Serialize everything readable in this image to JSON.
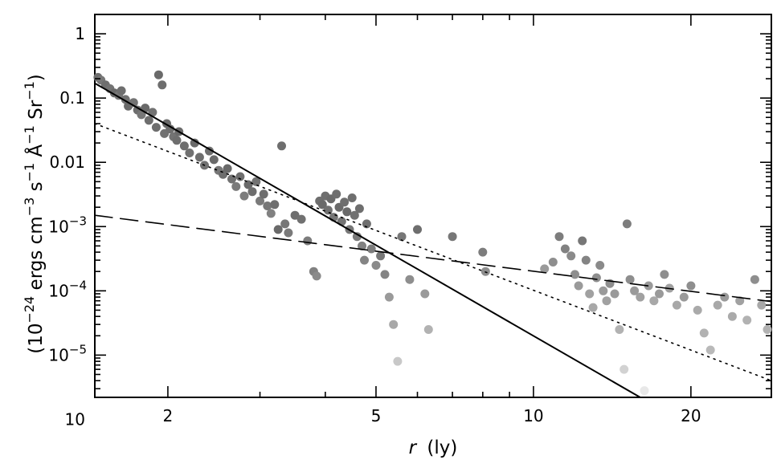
{
  "chart_data": {
    "type": "scatter",
    "title": "",
    "xlabel_var": "r",
    "xlabel_unit": "(ly)",
    "ylabel_parts": [
      "(10",
      "−24",
      " ergs cm",
      "−3",
      " s",
      "−1",
      " Å",
      "−1",
      " Sr",
      "−1",
      ")"
    ],
    "xscale": "log",
    "yscale": "log",
    "xlim": [
      1.45,
      28.5
    ],
    "ylim": [
      2.2e-06,
      2.0
    ],
    "xticks": [
      2,
      5,
      10,
      20
    ],
    "xtick_labels": [
      "2",
      "5",
      "10",
      "20"
    ],
    "yticks": [
      1,
      0.1,
      0.01,
      0.001,
      0.0001,
      1e-05,
      1e-06
    ],
    "ytick_labels": [
      {
        "base": "1",
        "exp": ""
      },
      {
        "base": "0.1",
        "exp": ""
      },
      {
        "base": "0.01",
        "exp": ""
      },
      {
        "base": "10",
        "exp": "−3"
      },
      {
        "base": "10",
        "exp": "−4"
      },
      {
        "base": "10",
        "exp": "−5"
      },
      {
        "base": "10",
        "exp": ""
      }
    ],
    "grid": false,
    "lines": [
      {
        "style": "solid",
        "x": [
          1.45,
          16.0
        ],
        "y": [
          0.17,
          2.2e-06
        ]
      },
      {
        "style": "dotted",
        "x": [
          1.45,
          28.5
        ],
        "y": [
          0.04,
          4e-06
        ]
      },
      {
        "style": "dashed",
        "x": [
          1.45,
          28.5
        ],
        "y": [
          0.0015,
          6.8e-05
        ]
      }
    ],
    "points": [
      {
        "x": 1.47,
        "y": 0.21,
        "c": "#6e6e6e"
      },
      {
        "x": 1.49,
        "y": 0.19,
        "c": "#777777"
      },
      {
        "x": 1.52,
        "y": 0.16,
        "c": "#6e6e6e"
      },
      {
        "x": 1.55,
        "y": 0.14,
        "c": "#737373"
      },
      {
        "x": 1.58,
        "y": 0.12,
        "c": "#6a6a6a"
      },
      {
        "x": 1.61,
        "y": 0.11,
        "c": "#777777"
      },
      {
        "x": 1.63,
        "y": 0.13,
        "c": "#6e6e6e"
      },
      {
        "x": 1.66,
        "y": 0.095,
        "c": "#717171"
      },
      {
        "x": 1.68,
        "y": 0.075,
        "c": "#6a6a6a"
      },
      {
        "x": 1.72,
        "y": 0.085,
        "c": "#737373"
      },
      {
        "x": 1.75,
        "y": 0.065,
        "c": "#6e6e6e"
      },
      {
        "x": 1.78,
        "y": 0.055,
        "c": "#777777"
      },
      {
        "x": 1.81,
        "y": 0.07,
        "c": "#6a6a6a"
      },
      {
        "x": 1.84,
        "y": 0.045,
        "c": "#6e6e6e"
      },
      {
        "x": 1.87,
        "y": 0.06,
        "c": "#727272"
      },
      {
        "x": 1.9,
        "y": 0.035,
        "c": "#6e6e6e"
      },
      {
        "x": 1.92,
        "y": 0.23,
        "c": "#6a6a6a"
      },
      {
        "x": 1.95,
        "y": 0.16,
        "c": "#6e6e6e"
      },
      {
        "x": 1.97,
        "y": 0.028,
        "c": "#717171"
      },
      {
        "x": 1.99,
        "y": 0.04,
        "c": "#6a6a6a"
      },
      {
        "x": 2.02,
        "y": 0.033,
        "c": "#6e6e6e"
      },
      {
        "x": 2.05,
        "y": 0.025,
        "c": "#737373"
      },
      {
        "x": 2.08,
        "y": 0.022,
        "c": "#6e6e6e"
      },
      {
        "x": 2.1,
        "y": 0.03,
        "c": "#6a6a6a"
      },
      {
        "x": 2.15,
        "y": 0.018,
        "c": "#6e6e6e"
      },
      {
        "x": 2.2,
        "y": 0.014,
        "c": "#717171"
      },
      {
        "x": 2.25,
        "y": 0.02,
        "c": "#6a6a6a"
      },
      {
        "x": 2.3,
        "y": 0.012,
        "c": "#6e6e6e"
      },
      {
        "x": 2.35,
        "y": 0.009,
        "c": "#727272"
      },
      {
        "x": 2.4,
        "y": 0.015,
        "c": "#6e6e6e"
      },
      {
        "x": 2.45,
        "y": 0.011,
        "c": "#6a6a6a"
      },
      {
        "x": 2.5,
        "y": 0.0075,
        "c": "#777777"
      },
      {
        "x": 2.55,
        "y": 0.0065,
        "c": "#6e6e6e"
      },
      {
        "x": 2.6,
        "y": 0.008,
        "c": "#6a6a6a"
      },
      {
        "x": 2.65,
        "y": 0.0055,
        "c": "#717171"
      },
      {
        "x": 2.7,
        "y": 0.0042,
        "c": "#7a7a7a"
      },
      {
        "x": 2.75,
        "y": 0.006,
        "c": "#6e6e6e"
      },
      {
        "x": 2.8,
        "y": 0.003,
        "c": "#7d7d7d"
      },
      {
        "x": 2.85,
        "y": 0.0045,
        "c": "#6a6a6a"
      },
      {
        "x": 2.9,
        "y": 0.0035,
        "c": "#6e6e6e"
      },
      {
        "x": 2.95,
        "y": 0.005,
        "c": "#737373"
      },
      {
        "x": 3.0,
        "y": 0.0025,
        "c": "#7a7a7a"
      },
      {
        "x": 3.05,
        "y": 0.0032,
        "c": "#6e6e6e"
      },
      {
        "x": 3.1,
        "y": 0.0021,
        "c": "#777777"
      },
      {
        "x": 3.15,
        "y": 0.0016,
        "c": "#818181"
      },
      {
        "x": 3.2,
        "y": 0.0022,
        "c": "#6e6e6e"
      },
      {
        "x": 3.25,
        "y": 0.0009,
        "c": "#6a6a6a"
      },
      {
        "x": 3.3,
        "y": 0.018,
        "c": "#6e6e6e"
      },
      {
        "x": 3.35,
        "y": 0.0011,
        "c": "#777777"
      },
      {
        "x": 3.4,
        "y": 0.0008,
        "c": "#7a7a7a"
      },
      {
        "x": 3.5,
        "y": 0.0015,
        "c": "#6e6e6e"
      },
      {
        "x": 3.6,
        "y": 0.0013,
        "c": "#717171"
      },
      {
        "x": 3.7,
        "y": 0.0006,
        "c": "#7d7d7d"
      },
      {
        "x": 3.8,
        "y": 0.0002,
        "c": "#818181"
      },
      {
        "x": 3.85,
        "y": 0.00017,
        "c": "#8a8a8a"
      },
      {
        "x": 3.9,
        "y": 0.0025,
        "c": "#6e6e6e"
      },
      {
        "x": 3.95,
        "y": 0.0022,
        "c": "#6a6a6a"
      },
      {
        "x": 4.0,
        "y": 0.003,
        "c": "#6e6e6e"
      },
      {
        "x": 4.05,
        "y": 0.0018,
        "c": "#717171"
      },
      {
        "x": 4.1,
        "y": 0.0027,
        "c": "#6a6a6a"
      },
      {
        "x": 4.15,
        "y": 0.0014,
        "c": "#777777"
      },
      {
        "x": 4.2,
        "y": 0.0032,
        "c": "#6e6e6e"
      },
      {
        "x": 4.25,
        "y": 0.002,
        "c": "#6a6a6a"
      },
      {
        "x": 4.3,
        "y": 0.0012,
        "c": "#737373"
      },
      {
        "x": 4.35,
        "y": 0.0024,
        "c": "#6e6e6e"
      },
      {
        "x": 4.4,
        "y": 0.0017,
        "c": "#6a6a6a"
      },
      {
        "x": 4.45,
        "y": 0.0009,
        "c": "#777777"
      },
      {
        "x": 4.5,
        "y": 0.0028,
        "c": "#6e6e6e"
      },
      {
        "x": 4.55,
        "y": 0.0015,
        "c": "#717171"
      },
      {
        "x": 4.6,
        "y": 0.0007,
        "c": "#7a7a7a"
      },
      {
        "x": 4.65,
        "y": 0.0019,
        "c": "#6e6e6e"
      },
      {
        "x": 4.7,
        "y": 0.0005,
        "c": "#818181"
      },
      {
        "x": 4.75,
        "y": 0.0003,
        "c": "#848484"
      },
      {
        "x": 4.8,
        "y": 0.0011,
        "c": "#6e6e6e"
      },
      {
        "x": 4.9,
        "y": 0.00045,
        "c": "#7d7d7d"
      },
      {
        "x": 5.0,
        "y": 0.00025,
        "c": "#8a8a8a"
      },
      {
        "x": 5.1,
        "y": 0.00035,
        "c": "#777777"
      },
      {
        "x": 5.2,
        "y": 0.00018,
        "c": "#848484"
      },
      {
        "x": 5.3,
        "y": 8e-05,
        "c": "#9a9a9a"
      },
      {
        "x": 5.4,
        "y": 3e-05,
        "c": "#a8a8a8"
      },
      {
        "x": 5.5,
        "y": 8e-06,
        "c": "#c8c8c8"
      },
      {
        "x": 5.6,
        "y": 0.0007,
        "c": "#777777"
      },
      {
        "x": 5.8,
        "y": 0.00015,
        "c": "#8e8e8e"
      },
      {
        "x": 6.0,
        "y": 0.0009,
        "c": "#6e6e6e"
      },
      {
        "x": 6.2,
        "y": 9e-05,
        "c": "#9a9a9a"
      },
      {
        "x": 6.3,
        "y": 2.5e-05,
        "c": "#b2b2b2"
      },
      {
        "x": 7.0,
        "y": 0.0007,
        "c": "#777777"
      },
      {
        "x": 8.0,
        "y": 0.0004,
        "c": "#7d7d7d"
      },
      {
        "x": 8.1,
        "y": 0.0002,
        "c": "#8e8e8e"
      },
      {
        "x": 10.5,
        "y": 0.00022,
        "c": "#9a9a9a"
      },
      {
        "x": 10.9,
        "y": 0.00028,
        "c": "#8e8e8e"
      },
      {
        "x": 11.2,
        "y": 0.0007,
        "c": "#7d7d7d"
      },
      {
        "x": 11.5,
        "y": 0.00045,
        "c": "#818181"
      },
      {
        "x": 11.8,
        "y": 0.00035,
        "c": "#8a8a8a"
      },
      {
        "x": 12.0,
        "y": 0.00018,
        "c": "#8e8e8e"
      },
      {
        "x": 12.2,
        "y": 0.00012,
        "c": "#9a9a9a"
      },
      {
        "x": 12.4,
        "y": 0.0006,
        "c": "#777777"
      },
      {
        "x": 12.6,
        "y": 0.0003,
        "c": "#848484"
      },
      {
        "x": 12.8,
        "y": 9e-05,
        "c": "#a1a1a1"
      },
      {
        "x": 13.0,
        "y": 5.5e-05,
        "c": "#a8a8a8"
      },
      {
        "x": 13.2,
        "y": 0.00016,
        "c": "#8e8e8e"
      },
      {
        "x": 13.4,
        "y": 0.00025,
        "c": "#8a8a8a"
      },
      {
        "x": 13.6,
        "y": 0.0001,
        "c": "#9a9a9a"
      },
      {
        "x": 13.8,
        "y": 7e-05,
        "c": "#a1a1a1"
      },
      {
        "x": 14.0,
        "y": 0.00013,
        "c": "#8e8e8e"
      },
      {
        "x": 14.3,
        "y": 9e-05,
        "c": "#9a9a9a"
      },
      {
        "x": 14.6,
        "y": 2.5e-05,
        "c": "#b2b2b2"
      },
      {
        "x": 14.9,
        "y": 6e-06,
        "c": "#d2d2d2"
      },
      {
        "x": 15.1,
        "y": 0.0011,
        "c": "#7d7d7d"
      },
      {
        "x": 15.3,
        "y": 0.00015,
        "c": "#8e8e8e"
      },
      {
        "x": 15.6,
        "y": 0.0001,
        "c": "#9a9a9a"
      },
      {
        "x": 16.0,
        "y": 8e-05,
        "c": "#a1a1a1"
      },
      {
        "x": 16.3,
        "y": 2.8e-06,
        "c": "#e8e8e8"
      },
      {
        "x": 16.6,
        "y": 0.00012,
        "c": "#9a9a9a"
      },
      {
        "x": 17.0,
        "y": 7e-05,
        "c": "#a8a8a8"
      },
      {
        "x": 17.4,
        "y": 9e-05,
        "c": "#9a9a9a"
      },
      {
        "x": 17.8,
        "y": 0.00018,
        "c": "#8e8e8e"
      },
      {
        "x": 18.2,
        "y": 0.00011,
        "c": "#a1a1a1"
      },
      {
        "x": 18.8,
        "y": 6e-05,
        "c": "#a8a8a8"
      },
      {
        "x": 19.4,
        "y": 8e-05,
        "c": "#9a9a9a"
      },
      {
        "x": 20.0,
        "y": 0.00012,
        "c": "#8e8e8e"
      },
      {
        "x": 20.6,
        "y": 5e-05,
        "c": "#aaaaaa"
      },
      {
        "x": 21.2,
        "y": 2.2e-05,
        "c": "#b2b2b2"
      },
      {
        "x": 21.8,
        "y": 1.2e-05,
        "c": "#b9b9b9"
      },
      {
        "x": 22.5,
        "y": 6e-05,
        "c": "#a8a8a8"
      },
      {
        "x": 23.2,
        "y": 8e-05,
        "c": "#9a9a9a"
      },
      {
        "x": 24.0,
        "y": 4e-05,
        "c": "#aaaaaa"
      },
      {
        "x": 24.8,
        "y": 7e-05,
        "c": "#a1a1a1"
      },
      {
        "x": 25.6,
        "y": 3.5e-05,
        "c": "#b2b2b2"
      },
      {
        "x": 26.5,
        "y": 0.00015,
        "c": "#8e8e8e"
      },
      {
        "x": 27.3,
        "y": 6e-05,
        "c": "#a8a8a8"
      },
      {
        "x": 28.0,
        "y": 2.5e-05,
        "c": "#b2b2b2"
      }
    ]
  }
}
